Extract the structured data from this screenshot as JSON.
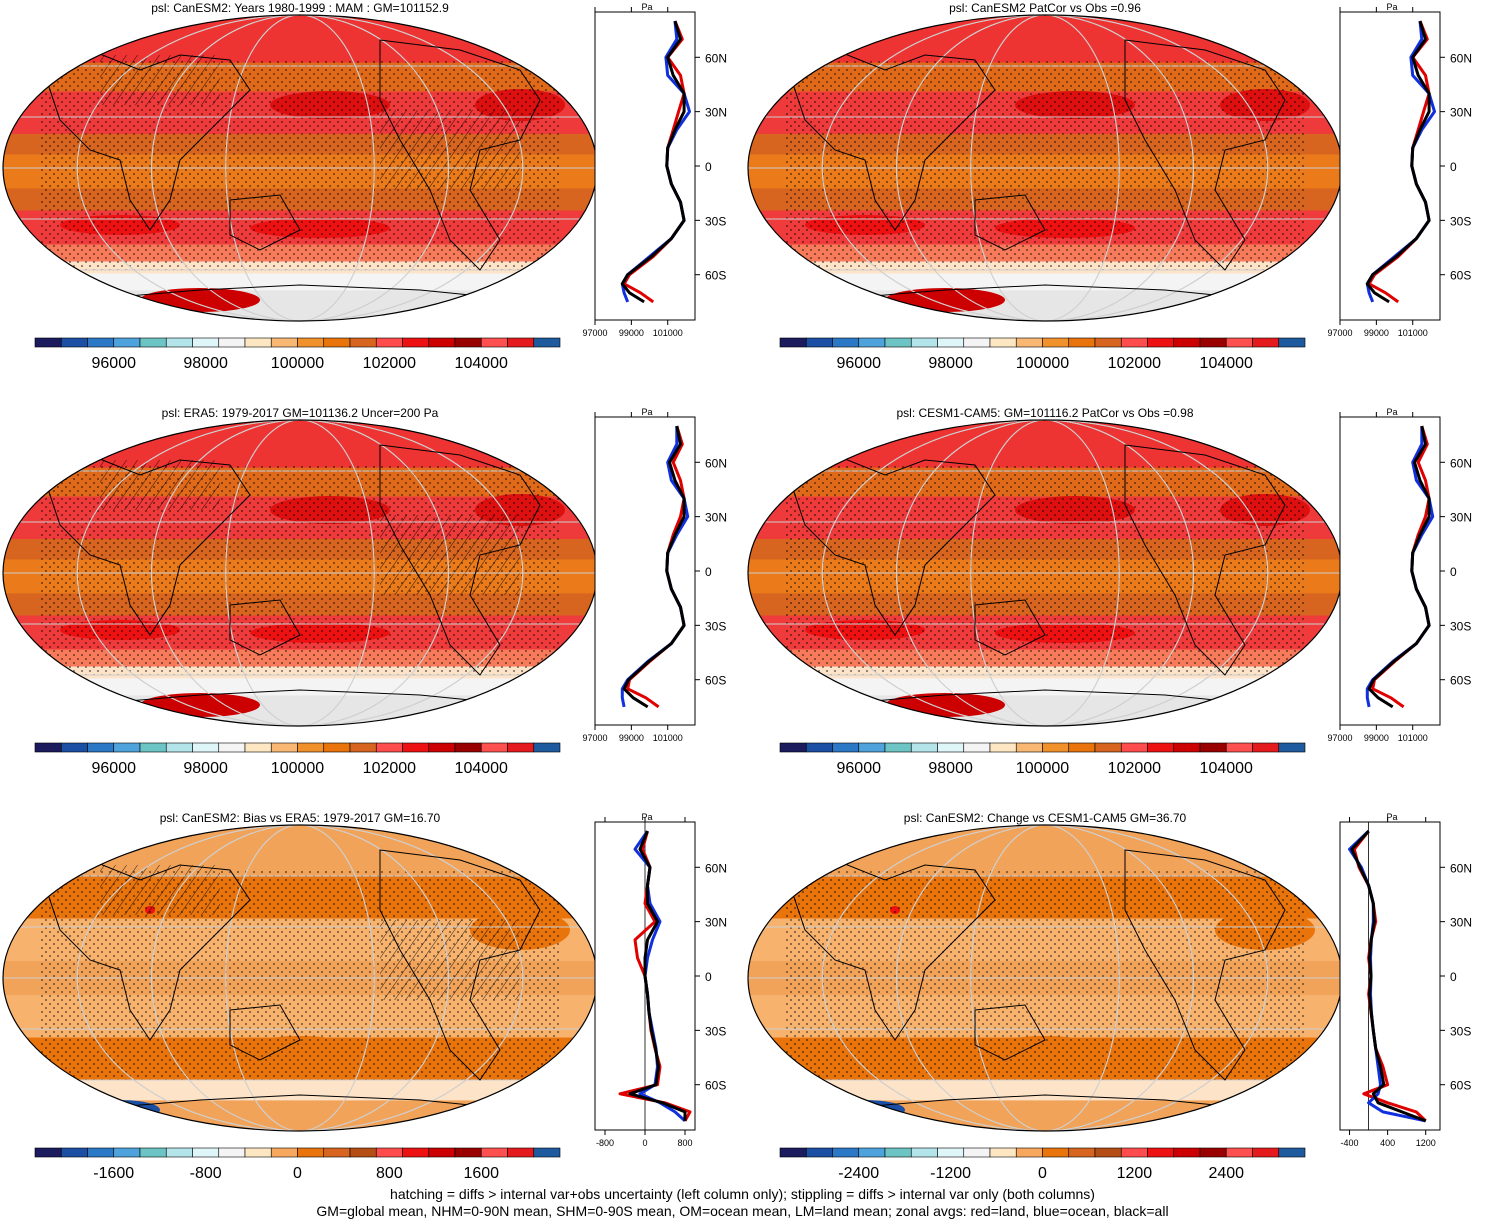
{
  "chart_data": [
    {
      "type": "heatmap",
      "title": "psl: CanESM2: Years 1980-1999 : MAM : GM=101152.9",
      "colorbar_ticks": [
        "96000",
        "98000",
        "100000",
        "102000",
        "104000"
      ],
      "zonal_profile": {
        "xlabel": "Pa",
        "xticks": [
          "97000",
          "99000",
          "101000"
        ],
        "yticks": [
          "60N",
          "30N",
          "0",
          "30S",
          "60S"
        ],
        "series": [
          {
            "color": "#e00000",
            "lat": [
              80,
              70,
              60,
              50,
              40,
              30,
              20,
              10,
              0,
              -10,
              -20,
              -30,
              -40,
              -50,
              -60,
              -65,
              -70,
              -75
            ],
            "values": [
              101400,
              101800,
              101000,
              101700,
              101900,
              101600,
              101300,
              101000,
              100950,
              101200,
              101700,
              101900,
              101200,
              100200,
              98900,
              98600,
              99500,
              100200
            ]
          },
          {
            "color": "#1030e0",
            "lat": [
              80,
              70,
              60,
              50,
              40,
              30,
              20,
              10,
              0,
              -10,
              -20,
              -30,
              -40,
              -50,
              -60,
              -65,
              -70,
              -75
            ],
            "values": [
              101400,
              101500,
              100900,
              101000,
              101900,
              102200,
              101500,
              101000,
              100950,
              101200,
              101700,
              101900,
              101200,
              100000,
              98800,
              98500,
              98600,
              98800
            ]
          },
          {
            "color": "#000000",
            "lat": [
              80,
              70,
              60,
              50,
              40,
              30,
              20,
              10,
              0,
              -10,
              -20,
              -30,
              -40,
              -50,
              -60,
              -65,
              -70,
              -75
            ],
            "values": [
              101400,
              101700,
              101000,
              101300,
              101900,
              101900,
              101400,
              101000,
              100950,
              101200,
              101700,
              101900,
              101200,
              100100,
              98800,
              98500,
              98900,
              99700
            ]
          }
        ]
      }
    },
    {
      "type": "heatmap",
      "title": "psl: CanESM2 PatCor vs Obs =0.96",
      "colorbar_ticks": [
        "96000",
        "98000",
        "100000",
        "102000",
        "104000"
      ],
      "zonal_profile": {
        "xlabel": "Pa",
        "xticks": [
          "97000",
          "99000",
          "101000"
        ],
        "yticks": [
          "60N",
          "30N",
          "0",
          "30S",
          "60S"
        ],
        "series": [
          {
            "color": "#e00000",
            "lat": [
              80,
              70,
              60,
              50,
              40,
              30,
              20,
              10,
              0,
              -10,
              -20,
              -30,
              -40,
              -50,
              -60,
              -65,
              -70,
              -75
            ],
            "values": [
              101400,
              101800,
              101000,
              101700,
              101900,
              101600,
              101300,
              101000,
              100950,
              101200,
              101700,
              101900,
              101200,
              100200,
              98900,
              98600,
              99500,
              100200
            ]
          },
          {
            "color": "#1030e0",
            "lat": [
              80,
              70,
              60,
              50,
              40,
              30,
              20,
              10,
              0,
              -10,
              -20,
              -30,
              -40,
              -50,
              -60,
              -65,
              -70,
              -75
            ],
            "values": [
              101400,
              101500,
              100900,
              101000,
              101900,
              102200,
              101500,
              101000,
              100950,
              101200,
              101700,
              101900,
              101200,
              100000,
              98800,
              98500,
              98600,
              98800
            ]
          },
          {
            "color": "#000000",
            "lat": [
              80,
              70,
              60,
              50,
              40,
              30,
              20,
              10,
              0,
              -10,
              -20,
              -30,
              -40,
              -50,
              -60,
              -65,
              -70,
              -75
            ],
            "values": [
              101400,
              101700,
              101000,
              101300,
              101900,
              101900,
              101400,
              101000,
              100950,
              101200,
              101700,
              101900,
              101200,
              100100,
              98800,
              98500,
              98900,
              99700
            ]
          }
        ]
      }
    },
    {
      "type": "heatmap",
      "title": "psl: ERA5: 1979-2017 GM=101136.2 Uncer=200 Pa",
      "colorbar_ticks": [
        "96000",
        "98000",
        "100000",
        "102000",
        "104000"
      ],
      "zonal_profile": {
        "xlabel": "Pa",
        "xticks": [
          "97000",
          "99000",
          "101000"
        ],
        "yticks": [
          "60N",
          "30N",
          "0",
          "30S",
          "60S"
        ],
        "series": [
          {
            "color": "#e00000",
            "lat": [
              80,
              70,
              60,
              50,
              40,
              30,
              20,
              10,
              0,
              -10,
              -20,
              -30,
              -40,
              -50,
              -60,
              -65,
              -70,
              -75
            ],
            "values": [
              101500,
              101800,
              101300,
              101700,
              101900,
              101700,
              101300,
              101000,
              100950,
              101200,
              101700,
              101900,
              101200,
              100000,
              98900,
              98800,
              99800,
              100500
            ]
          },
          {
            "color": "#1030e0",
            "lat": [
              80,
              70,
              60,
              50,
              40,
              30,
              20,
              10,
              0,
              -10,
              -20,
              -30,
              -40,
              -50,
              -60,
              -65,
              -70,
              -75
            ],
            "values": [
              101500,
              101500,
              101000,
              101200,
              101900,
              102100,
              101500,
              101000,
              100950,
              101200,
              101700,
              101900,
              101200,
              99900,
              98800,
              98500,
              98500,
              98600
            ]
          },
          {
            "color": "#000000",
            "lat": [
              80,
              70,
              60,
              50,
              40,
              30,
              20,
              10,
              0,
              -10,
              -20,
              -30,
              -40,
              -50,
              -60,
              -65,
              -70,
              -75
            ],
            "values": [
              101500,
              101700,
              101100,
              101400,
              101900,
              101900,
              101400,
              101000,
              100950,
              101200,
              101700,
              101900,
              101200,
              99950,
              98850,
              98600,
              99100,
              99900
            ]
          }
        ]
      }
    },
    {
      "type": "heatmap",
      "title": "psl: CESM1-CAM5: GM=101116.2 PatCor vs Obs =0.98",
      "colorbar_ticks": [
        "96000",
        "98000",
        "100000",
        "102000",
        "104000"
      ],
      "zonal_profile": {
        "xlabel": "Pa",
        "xticks": [
          "97000",
          "99000",
          "101000"
        ],
        "yticks": [
          "60N",
          "30N",
          "0",
          "30S",
          "60S"
        ],
        "series": [
          {
            "color": "#e00000",
            "lat": [
              80,
              70,
              60,
              50,
              40,
              30,
              20,
              10,
              0,
              -10,
              -20,
              -30,
              -40,
              -50,
              -60,
              -65,
              -70,
              -75
            ],
            "values": [
              101500,
              101800,
              101300,
              101700,
              101900,
              101700,
              101300,
              101000,
              100950,
              101200,
              101700,
              101900,
              101200,
              100000,
              98900,
              98800,
              99800,
              100500
            ]
          },
          {
            "color": "#1030e0",
            "lat": [
              80,
              70,
              60,
              50,
              40,
              30,
              20,
              10,
              0,
              -10,
              -20,
              -30,
              -40,
              -50,
              -60,
              -65,
              -70,
              -75
            ],
            "values": [
              101500,
              101500,
              101000,
              101200,
              101900,
              102100,
              101500,
              101000,
              100950,
              101200,
              101700,
              101900,
              101200,
              99900,
              98800,
              98500,
              98500,
              98600
            ]
          },
          {
            "color": "#000000",
            "lat": [
              80,
              70,
              60,
              50,
              40,
              30,
              20,
              10,
              0,
              -10,
              -20,
              -30,
              -40,
              -50,
              -60,
              -65,
              -70,
              -75
            ],
            "values": [
              101500,
              101700,
              101100,
              101400,
              101900,
              101900,
              101400,
              101000,
              100950,
              101200,
              101700,
              101900,
              101200,
              99950,
              98850,
              98600,
              99100,
              99900
            ]
          }
        ]
      }
    },
    {
      "type": "heatmap",
      "title": "psl: CanESM2: Bias vs ERA5: 1979-2017 GM=16.70",
      "colorbar_ticks": [
        "-1600",
        "-800",
        "0",
        "800",
        "1600"
      ],
      "zonal_profile": {
        "xlabel": "Pa",
        "xticks": [
          "-800",
          "0",
          "800"
        ],
        "yticks": [
          "60N",
          "30N",
          "0",
          "30S",
          "60S"
        ],
        "series": [
          {
            "color": "#e00000",
            "lat": [
              80,
              70,
              60,
              50,
              40,
              30,
              20,
              10,
              0,
              -10,
              -20,
              -30,
              -40,
              -50,
              -60,
              -65,
              -70,
              -75,
              -80
            ],
            "values": [
              50,
              -50,
              100,
              50,
              0,
              200,
              -200,
              -150,
              0,
              50,
              80,
              120,
              200,
              300,
              250,
              -500,
              400,
              900,
              800
            ]
          },
          {
            "color": "#1030e0",
            "lat": [
              80,
              70,
              60,
              50,
              40,
              30,
              20,
              10,
              0,
              -10,
              -20,
              -30,
              -40,
              -50,
              -60,
              -65,
              -70,
              -75,
              -80
            ],
            "values": [
              50,
              -200,
              100,
              50,
              100,
              300,
              150,
              50,
              0,
              50,
              80,
              150,
              220,
              250,
              200,
              -100,
              300,
              600,
              800
            ]
          },
          {
            "color": "#000000",
            "lat": [
              80,
              70,
              60,
              50,
              40,
              30,
              20,
              10,
              0,
              -10,
              -20,
              -30,
              -40,
              -50,
              -60,
              -65,
              -70,
              -75,
              -80
            ],
            "values": [
              50,
              -100,
              100,
              50,
              50,
              250,
              50,
              0,
              0,
              50,
              80,
              130,
              210,
              270,
              220,
              -300,
              350,
              800,
              800
            ]
          }
        ]
      }
    },
    {
      "type": "heatmap",
      "title": "psl: CanESM2: Change vs CESM1-CAM5 GM=36.70",
      "colorbar_ticks": [
        "-2400",
        "-1200",
        "0",
        "1200",
        "2400"
      ],
      "zonal_profile": {
        "xlabel": "Pa",
        "xticks": [
          "-400",
          "400",
          "1200"
        ],
        "yticks": [
          "60N",
          "30N",
          "0",
          "30S",
          "60S"
        ],
        "series": [
          {
            "color": "#e00000",
            "lat": [
              80,
              70,
              60,
              50,
              40,
              30,
              20,
              10,
              0,
              -10,
              -20,
              -30,
              -40,
              -50,
              -60,
              -65,
              -70,
              -75,
              -80
            ],
            "values": [
              0,
              -300,
              -200,
              0,
              100,
              150,
              50,
              0,
              50,
              0,
              50,
              100,
              150,
              300,
              400,
              -100,
              400,
              1000,
              1200
            ]
          },
          {
            "color": "#1030e0",
            "lat": [
              80,
              70,
              60,
              50,
              40,
              30,
              20,
              10,
              0,
              -10,
              -20,
              -30,
              -40,
              -50,
              -60,
              -65,
              -70,
              -75,
              -80
            ],
            "values": [
              0,
              -400,
              -150,
              0,
              100,
              100,
              60,
              40,
              50,
              40,
              60,
              100,
              150,
              200,
              250,
              200,
              0,
              300,
              1200
            ]
          },
          {
            "color": "#000000",
            "lat": [
              80,
              70,
              60,
              50,
              40,
              30,
              20,
              10,
              0,
              -10,
              -20,
              -30,
              -40,
              -50,
              -60,
              -65,
              -70,
              -75,
              -80
            ],
            "values": [
              0,
              -350,
              -180,
              0,
              100,
              120,
              55,
              20,
              50,
              20,
              55,
              100,
              150,
              250,
              320,
              100,
              200,
              700,
              1200
            ]
          }
        ]
      }
    }
  ],
  "footnote": {
    "line1": "hatching = diffs > internal var+obs uncertainty (left column only); stippling = diffs > internal var only (both columns)",
    "line2": "GM=global mean, NHM=0-90N mean, SHM=0-90S mean, OM=ocean mean, LM=land mean; zonal avgs: red=land, blue=ocean, black=all"
  },
  "palettes": {
    "absolute": [
      "#1b1b5e",
      "#1a4fa3",
      "#2b79c6",
      "#4fa3dd",
      "#6cc4c4",
      "#b3e4ea",
      "#dff6f8",
      "#f4f4f4",
      "#fde7c3",
      "#f9b774",
      "#f0912c",
      "#e9740c",
      "#d8651f",
      "#ff4d4d",
      "#ee1111",
      "#cc0000",
      "#990000",
      "#ff5050",
      "#e41a1c",
      "#1e5a9e"
    ],
    "difference": [
      "#1b1b5e",
      "#1a4fa3",
      "#2b79c6",
      "#4fa3dd",
      "#6cc4c4",
      "#b3e4ea",
      "#dff6f8",
      "#f4f4f4",
      "#fde7c3",
      "#f7a85e",
      "#e9740c",
      "#d8651f",
      "#b44e14",
      "#ff4d4d",
      "#ee1111",
      "#cc0000",
      "#990000",
      "#ff5050",
      "#e41a1c",
      "#1e5a9e"
    ]
  }
}
